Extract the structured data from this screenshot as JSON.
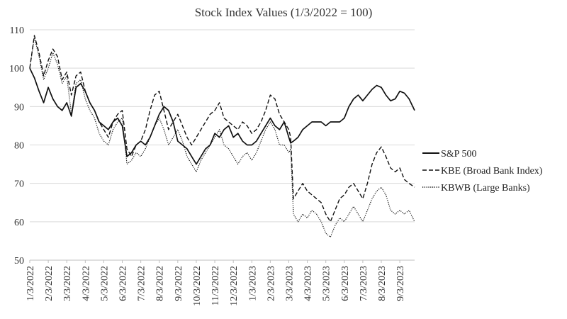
{
  "chart_data": {
    "type": "line",
    "title": "Stock Index Values (1/3/2022 = 100)",
    "xlabel": "",
    "ylabel": "",
    "ylim": [
      50,
      110
    ],
    "yticks": [
      50,
      60,
      70,
      80,
      90,
      100,
      110
    ],
    "grid": "horizontal",
    "legend_position": "right",
    "x_tick_labels": [
      "1/3/2022",
      "2/3/2022",
      "3/3/2022",
      "4/3/2022",
      "5/3/2022",
      "6/3/2022",
      "7/3/2022",
      "8/3/2022",
      "9/3/2022",
      "10/3/2022",
      "11/3/2022",
      "12/3/2022",
      "1/3/2023",
      "2/3/2023",
      "3/3/2023",
      "4/3/2023",
      "5/3/2023",
      "6/3/2023",
      "7/3/2023",
      "8/3/2023",
      "9/3/2023"
    ],
    "x_months_elapsed": [
      0,
      0.25,
      0.5,
      0.75,
      1,
      1.25,
      1.5,
      1.75,
      2,
      2.25,
      2.5,
      2.75,
      3,
      3.25,
      3.5,
      3.75,
      4,
      4.25,
      4.5,
      4.75,
      5,
      5.25,
      5.5,
      5.75,
      6,
      6.25,
      6.5,
      6.75,
      7,
      7.25,
      7.5,
      7.75,
      8,
      8.25,
      8.5,
      8.75,
      9,
      9.25,
      9.5,
      9.75,
      10,
      10.25,
      10.5,
      10.75,
      11,
      11.25,
      11.5,
      11.75,
      12,
      12.25,
      12.5,
      12.75,
      13,
      13.25,
      13.5,
      13.75,
      14,
      14.1,
      14.25,
      14.5,
      14.75,
      15,
      15.25,
      15.5,
      15.75,
      16,
      16.25,
      16.5,
      16.75,
      17,
      17.25,
      17.5,
      17.75,
      18,
      18.25,
      18.5,
      18.75,
      19,
      19.25,
      19.5,
      19.75,
      20,
      20.25,
      20.5,
      20.8
    ],
    "series": [
      {
        "name": "S&P 500",
        "style": "solid",
        "values": [
          100,
          97.5,
          94,
          91,
          95,
          92,
          90,
          89,
          91,
          87.5,
          95,
          96,
          94,
          91,
          89,
          86,
          85,
          84,
          86,
          87,
          85,
          77,
          78,
          80,
          81,
          80,
          82,
          85,
          88,
          90,
          89,
          86,
          81,
          80,
          79,
          77,
          75,
          77,
          79,
          80,
          83,
          82,
          84,
          85,
          82,
          83,
          81,
          80,
          80,
          81,
          83,
          85,
          87,
          85,
          84,
          86,
          82,
          80.5,
          81,
          82,
          84,
          85,
          86,
          86,
          86,
          85,
          86,
          86,
          86,
          87,
          90,
          92,
          93,
          91.5,
          93,
          94.5,
          95.5,
          95,
          93,
          91.5,
          92,
          94,
          93.5,
          92,
          89
        ]
      },
      {
        "name": "KBE (Broad Bank Index)",
        "style": "dashed",
        "values": [
          100,
          108.5,
          104,
          98,
          102,
          105,
          103,
          97,
          99,
          93,
          98,
          99,
          94,
          91,
          89,
          86,
          84,
          82,
          86,
          88,
          89,
          79,
          77,
          80,
          81,
          84,
          89,
          93,
          94,
          89,
          84,
          86,
          88,
          85,
          82,
          80,
          82,
          84,
          86,
          88,
          89,
          91,
          87,
          86,
          85,
          84,
          86,
          85,
          83,
          84,
          86,
          89,
          93,
          92,
          88,
          86,
          84,
          82,
          66,
          68,
          70,
          68,
          67,
          66,
          65,
          62,
          60,
          63,
          66,
          67,
          69,
          70,
          68,
          66,
          70,
          75,
          78,
          79.5,
          77,
          74,
          73,
          74,
          71,
          70,
          69
        ]
      },
      {
        "name": "KBWB (Large Banks)",
        "style": "dotted",
        "values": [
          100,
          108,
          103,
          97,
          100,
          104,
          101,
          96,
          98,
          88,
          96,
          97,
          92,
          89,
          87,
          83,
          81,
          80,
          84,
          86,
          87,
          75,
          76,
          78,
          77,
          79,
          82,
          85,
          87,
          84,
          80,
          82,
          84,
          81,
          77,
          75,
          73,
          76,
          78,
          80,
          82,
          84,
          80,
          79,
          77,
          75,
          77,
          78,
          76,
          78,
          81,
          84,
          86,
          84,
          80,
          80,
          78,
          79,
          62,
          60,
          62,
          61,
          63,
          62,
          60,
          57,
          56,
          59,
          61,
          60,
          62,
          64,
          62,
          60,
          63,
          66,
          68,
          69,
          67,
          63,
          62,
          63,
          62,
          63,
          60
        ]
      }
    ]
  }
}
